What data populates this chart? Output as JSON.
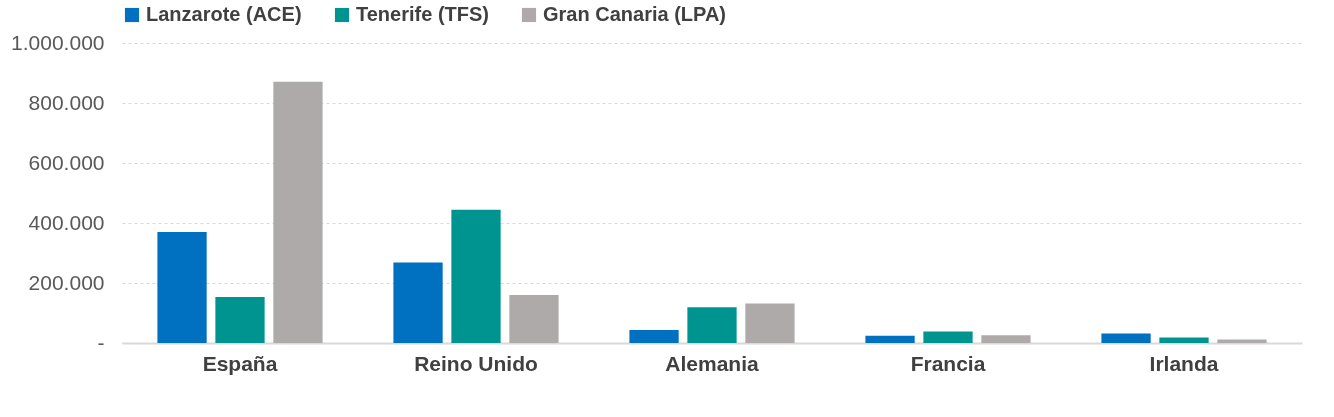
{
  "chart_data": {
    "type": "bar",
    "categories": [
      "España",
      "Reino Unido",
      "Alemania",
      "Francia",
      "Irlanda"
    ],
    "series": [
      {
        "name": "Lanzarote (ACE)",
        "color": "#0070c0",
        "values": [
          370000,
          268000,
          43000,
          24000,
          32000
        ]
      },
      {
        "name": "Tenerife (TFS)",
        "color": "#009490",
        "values": [
          153000,
          444000,
          119000,
          38000,
          18000
        ]
      },
      {
        "name": "Gran Canaria (LPA)",
        "color": "#aeaaaa",
        "values": [
          871000,
          160000,
          132000,
          26000,
          12000
        ]
      }
    ],
    "ylim": [
      0,
      1000000
    ],
    "yticks": [
      {
        "value": 0,
        "label": "-"
      },
      {
        "value": 200000,
        "label": "200.000"
      },
      {
        "value": 400000,
        "label": "400.000"
      },
      {
        "value": 600000,
        "label": "600.000"
      },
      {
        "value": 800000,
        "label": "800.000"
      },
      {
        "value": 1000000,
        "label": "1.000.000"
      }
    ],
    "grid": "y",
    "legend": "top"
  }
}
